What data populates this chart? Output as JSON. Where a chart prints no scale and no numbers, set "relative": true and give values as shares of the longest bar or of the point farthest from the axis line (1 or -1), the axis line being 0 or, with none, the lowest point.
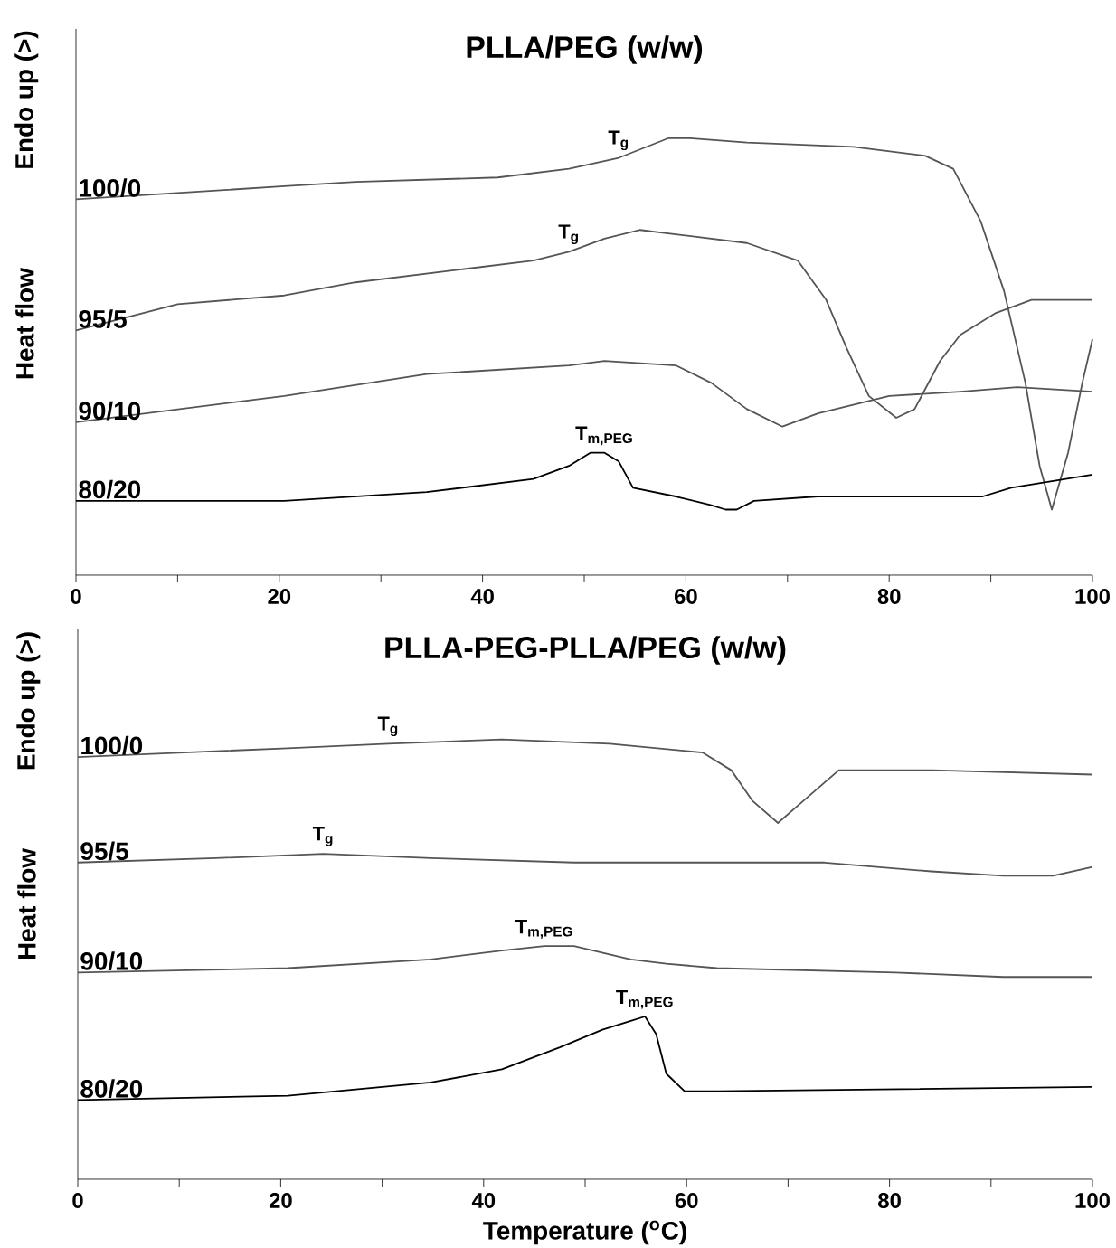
{
  "chart_data": [
    {
      "type": "line",
      "title": "PLLA/PEG (w/w)",
      "ylabel": "Heat flow",
      "relative": true,
      "xlim": [
        0,
        100
      ],
      "xticks": [
        0,
        {
          "value": 10,
          "label": null
        },
        20,
        {
          "value": 30,
          "label": null
        },
        40,
        {
          "value": 50,
          "label": null
        },
        60,
        {
          "value": 70,
          "label": null
        },
        80,
        {
          "value": 90,
          "label": null
        },
        100
      ],
      "annotations": [
        "Endo up (>)",
        {
          "text": "T$_{g}$",
          "x": 53.4,
          "y": 0.955
        },
        {
          "text": "T$_{g}$",
          "x": 48.5,
          "y": 0.74
        },
        {
          "text": "T$_{m,PEG}$",
          "x": 52,
          "y": 0.28
        }
      ],
      "series": [
        {
          "name": "100/0",
          "color": "#555555",
          "x": [
            0,
            20.5,
            27.5,
            41.5,
            48.5,
            53.4,
            58.3,
            60.4,
            66,
            76.5,
            83.5,
            86.3,
            89,
            91.3,
            93.4,
            94.8,
            96,
            97.6,
            99,
            100
          ],
          "values": [
            0.86,
            0.89,
            0.9,
            0.91,
            0.93,
            0.955,
            1,
            1,
            0.99,
            0.98,
            0.96,
            0.93,
            0.81,
            0.65,
            0.44,
            0.25,
            0.15,
            0.28,
            0.44,
            0.54
          ]
        },
        {
          "name": "95/5",
          "color": "#555555",
          "x": [
            0,
            10,
            20.5,
            27.5,
            38,
            45,
            48.5,
            52,
            55.5,
            59,
            66,
            71,
            73.8,
            75.8,
            78,
            80.7,
            82.5,
            85,
            87,
            90.5,
            94,
            100
          ],
          "values": [
            0.56,
            0.62,
            0.64,
            0.67,
            0.7,
            0.72,
            0.74,
            0.77,
            0.79,
            0.78,
            0.76,
            0.72,
            0.63,
            0.52,
            0.41,
            0.36,
            0.38,
            0.49,
            0.55,
            0.6,
            0.63,
            0.63
          ]
        },
        {
          "name": "90/10",
          "color": "#555555",
          "x": [
            0,
            20.5,
            34.5,
            48.5,
            52,
            59,
            62.5,
            66,
            69.5,
            73,
            80,
            87,
            92.6,
            100
          ],
          "values": [
            0.35,
            0.41,
            0.46,
            0.48,
            0.49,
            0.48,
            0.44,
            0.38,
            0.34,
            0.37,
            0.41,
            0.42,
            0.43,
            0.42
          ]
        },
        {
          "name": "80/20",
          "color": "#000000",
          "x": [
            0,
            20.5,
            34.5,
            45,
            48.5,
            50.6,
            52,
            53.4,
            54.8,
            59,
            62.5,
            63.9,
            65,
            66.7,
            73,
            89.2,
            92,
            100
          ],
          "values": [
            0.17,
            0.17,
            0.19,
            0.22,
            0.25,
            0.28,
            0.28,
            0.26,
            0.2,
            0.18,
            0.16,
            0.15,
            0.15,
            0.17,
            0.18,
            0.18,
            0.2,
            0.23
          ]
        }
      ]
    },
    {
      "type": "line",
      "title": "PLLA-PEG-PLLA/PEG (w/w)",
      "xlabel": "Temperature ($^{o}$C)",
      "ylabel": "Heat flow",
      "relative": true,
      "xlim": [
        0,
        100
      ],
      "xticks": [
        0,
        {
          "value": 10,
          "label": null
        },
        20,
        {
          "value": 30,
          "label": null
        },
        40,
        {
          "value": 50,
          "label": null
        },
        60,
        {
          "value": 70,
          "label": null
        },
        80,
        {
          "value": 90,
          "label": null
        },
        100
      ],
      "annotations": [
        "Endo up (>)",
        {
          "text": "T$_{g}$",
          "x": 30.6,
          "y": 0.99
        },
        {
          "text": "T$_{g}$",
          "x": 24.2,
          "y": 0.74
        },
        {
          "text": "T$_{m,PEG}$",
          "x": 46,
          "y": 0.53
        },
        {
          "text": "T$_{m,PEG}$",
          "x": 55.9,
          "y": 0.37
        }
      ],
      "series": [
        {
          "name": "100/0",
          "color": "#555555",
          "x": [
            0,
            20.7,
            30.6,
            41.8,
            52.4,
            61.6,
            64.4,
            66.5,
            69,
            71.5,
            75,
            84.2,
            100
          ],
          "values": [
            0.96,
            0.98,
            0.99,
            1,
            0.99,
            0.97,
            0.93,
            0.86,
            0.81,
            0.86,
            0.93,
            0.93,
            0.92
          ]
        },
        {
          "name": "95/5",
          "color": "#555555",
          "x": [
            0,
            13.6,
            24.2,
            34.8,
            48.9,
            60.2,
            73.6,
            84.1,
            91.2,
            96.1,
            100
          ],
          "values": [
            0.72,
            0.73,
            0.74,
            0.73,
            0.72,
            0.72,
            0.72,
            0.7,
            0.69,
            0.69,
            0.71
          ]
        },
        {
          "name": "90/10",
          "color": "#555555",
          "x": [
            0,
            20.7,
            34.8,
            41.8,
            46,
            48.9,
            54.5,
            58,
            63,
            80.6,
            91.2,
            100
          ],
          "values": [
            0.47,
            0.48,
            0.5,
            0.52,
            0.53,
            0.53,
            0.5,
            0.49,
            0.48,
            0.47,
            0.46,
            0.46
          ]
        },
        {
          "name": "80/20",
          "color": "#000000",
          "x": [
            0,
            20.7,
            34.8,
            41.8,
            47.5,
            51.7,
            54.5,
            55.9,
            57,
            58,
            59.8,
            63,
            100
          ],
          "values": [
            0.18,
            0.19,
            0.22,
            0.25,
            0.3,
            0.34,
            0.36,
            0.37,
            0.33,
            0.24,
            0.2,
            0.2,
            0.21
          ]
        }
      ]
    }
  ]
}
